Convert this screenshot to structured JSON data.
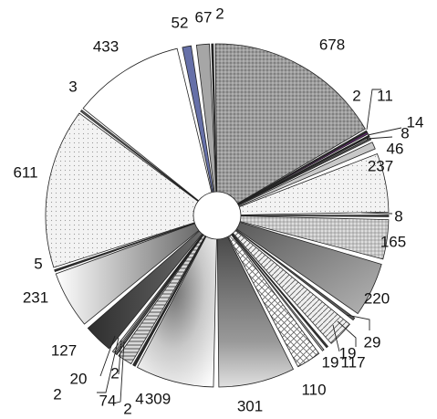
{
  "chart_data": {
    "type": "pie",
    "title": "",
    "exploded": true,
    "legend": "none",
    "slices": [
      {
        "label": "678",
        "value": 678,
        "color": "#9c9c9c",
        "pattern": "dots-dark"
      },
      {
        "label": "2",
        "value": 2,
        "color": "#2b2b2b",
        "pattern": "solid"
      },
      {
        "label": "11",
        "value": 11,
        "color": "#6a2a78",
        "pattern": "solid"
      },
      {
        "label": "14",
        "value": 14,
        "color": "#222222",
        "pattern": "solid"
      },
      {
        "label": "8",
        "value": 8,
        "color": "#5a5a5a",
        "pattern": "solid"
      },
      {
        "label": "46",
        "value": 46,
        "color": "#c8c8c8",
        "pattern": "solid"
      },
      {
        "label": "237",
        "value": 237,
        "color": "#e4e4e4",
        "pattern": "dots-light"
      },
      {
        "label": "8",
        "value": 8,
        "color": "#444444",
        "pattern": "solid"
      },
      {
        "label": "165",
        "value": 165,
        "color": "#c2c2c2",
        "pattern": "dots-mid"
      },
      {
        "label": "220",
        "value": 220,
        "color": "#8a8a8a",
        "pattern": "grad-dark"
      },
      {
        "label": "29",
        "value": 29,
        "color": "#5d5d5d",
        "pattern": "solid"
      },
      {
        "label": "117",
        "value": 117,
        "color": "#dcdcdc",
        "pattern": "hatch"
      },
      {
        "label": "19",
        "value": 19,
        "color": "#3d3d3d",
        "pattern": "solid"
      },
      {
        "label": "19",
        "value": 19,
        "color": "#b0b0b0",
        "pattern": "solid"
      },
      {
        "label": "110",
        "value": 110,
        "color": "#cfcfcf",
        "pattern": "crosshatch"
      },
      {
        "label": "301",
        "value": 301,
        "color": "#7a7a7a",
        "pattern": "grad-vert"
      },
      {
        "label": "309",
        "value": 309,
        "color": "#e8e8e8",
        "pattern": "grad-radial"
      },
      {
        "label": "4",
        "value": 4,
        "color": "#555555",
        "pattern": "solid"
      },
      {
        "label": "2",
        "value": 2,
        "color": "#333333",
        "pattern": "solid"
      },
      {
        "label": "74",
        "value": 74,
        "color": "#bdbdbd",
        "pattern": "stripes"
      },
      {
        "label": "2",
        "value": 2,
        "color": "#444444",
        "pattern": "solid"
      },
      {
        "label": "2",
        "value": 2,
        "color": "#777777",
        "pattern": "solid"
      },
      {
        "label": "20",
        "value": 20,
        "color": "#d0d0d0",
        "pattern": "solid"
      },
      {
        "label": "127",
        "value": 127,
        "color": "#4a4a4a",
        "pattern": "grad-dark2"
      },
      {
        "label": "231",
        "value": 231,
        "color": "#eeeeee",
        "pattern": "grad-light"
      },
      {
        "label": "5",
        "value": 5,
        "color": "#333333",
        "pattern": "solid"
      },
      {
        "label": "611",
        "value": 611,
        "color": "#f2f2f2",
        "pattern": "dots-light"
      },
      {
        "label": "3",
        "value": 3,
        "color": "#666666",
        "pattern": "solid"
      },
      {
        "label": "433",
        "value": 433,
        "color": "#ffffff",
        "pattern": "solid"
      },
      {
        "label": "52",
        "value": 52,
        "color": "#6670a8",
        "pattern": "solid"
      },
      {
        "label": "67",
        "value": 67,
        "color": "#a6a6a6",
        "pattern": "solid"
      },
      {
        "label": "2",
        "value": 2,
        "color": "#222222",
        "pattern": "solid"
      }
    ]
  }
}
